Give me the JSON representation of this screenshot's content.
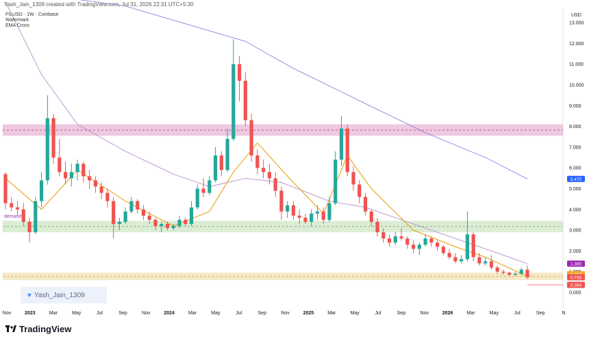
{
  "header": {
    "credit": "Yash_Jain_1309 created with TradingView.com, Jul 31, 2026 22:31 UTC+5:30"
  },
  "legend": {
    "symbol": "FILUSD · 1W · Coinbase",
    "watermark": "Watermark",
    "indicator": "EMA Cross"
  },
  "watermark": {
    "text": "Yash_Jain_1309",
    "icon": "heart-icon"
  },
  "zones": {
    "demand_label": "demand"
  },
  "footer": {
    "logo_text": "TradingView",
    "logo_icon": "tradingview-logo-icon"
  },
  "colors": {
    "up_candle": "#26a69a",
    "down_candle": "#ef5350",
    "ema_fast": "#e8a317",
    "ema_slow": "#8f83d9",
    "supply_zone": "#e8b7d6",
    "demand_zone": "#cfe6c7",
    "bottom_zone": "#f1e0b3"
  },
  "chart_data": {
    "type": "candlestick",
    "currency": "USD",
    "y_ticks": [
      "13.000",
      "12.000",
      "11.000",
      "10.000",
      "9.000",
      "8.000",
      "7.000",
      "6.000",
      "5.000",
      "4.000",
      "3.000",
      "2.000",
      "1.000",
      "0.000"
    ],
    "x_ticks": [
      "Nov",
      "2023",
      "Mar",
      "May",
      "Jul",
      "Sep",
      "Nov",
      "2024",
      "Mar",
      "May",
      "Jul",
      "Sep",
      "Nov",
      "2025",
      "Mar",
      "May",
      "Jul",
      "Sep",
      "Nov",
      "2026",
      "Mar",
      "May",
      "Jul",
      "Sep",
      "N"
    ],
    "ylim": [
      0,
      13.6
    ],
    "price_labels": [
      {
        "value": 5.47,
        "text": "5.470",
        "color": "#2962ff"
      },
      {
        "value": 1.385,
        "text": "1.385",
        "color": "#9c27b0"
      },
      {
        "value": 0.88,
        "text": "0.880",
        "color": "#f5a623"
      },
      {
        "value": 0.73,
        "text": "0.730",
        "color": "#ef5350"
      },
      {
        "value": 0.364,
        "text": "0.364",
        "color": "#ef5350"
      }
    ],
    "zones": [
      {
        "name": "supply",
        "low": 7.55,
        "high": 8.1,
        "mid": 7.82
      },
      {
        "name": "demand",
        "low": 2.9,
        "high": 3.45,
        "mid": 3.18
      },
      {
        "name": "bottom",
        "low": 0.6,
        "high": 0.95,
        "mid": 0.78
      }
    ],
    "candles": [
      [
        5.7,
        5.8,
        4.0,
        4.3
      ],
      [
        4.3,
        4.6,
        3.9,
        4.1
      ],
      [
        4.1,
        4.4,
        3.7,
        4.0
      ],
      [
        4.0,
        4.3,
        3.2,
        3.4
      ],
      [
        3.4,
        3.6,
        2.4,
        2.9
      ],
      [
        2.9,
        4.6,
        2.8,
        4.4
      ],
      [
        4.4,
        5.8,
        4.1,
        5.4
      ],
      [
        5.4,
        9.5,
        5.2,
        8.4
      ],
      [
        8.4,
        8.6,
        6.2,
        6.5
      ],
      [
        6.5,
        7.4,
        5.6,
        5.8
      ],
      [
        5.8,
        6.3,
        5.2,
        5.5
      ],
      [
        5.5,
        6.2,
        5.1,
        5.8
      ],
      [
        5.8,
        6.4,
        5.4,
        6.2
      ],
      [
        6.2,
        6.3,
        5.3,
        5.6
      ],
      [
        5.6,
        5.9,
        5.0,
        5.4
      ],
      [
        5.4,
        5.6,
        4.8,
        5.1
      ],
      [
        5.1,
        5.3,
        4.5,
        4.8
      ],
      [
        4.8,
        5.0,
        4.1,
        4.4
      ],
      [
        4.4,
        4.6,
        2.6,
        3.3
      ],
      [
        3.3,
        3.6,
        3.0,
        3.4
      ],
      [
        3.4,
        4.1,
        3.3,
        3.9
      ],
      [
        3.9,
        4.6,
        3.8,
        4.4
      ],
      [
        4.4,
        4.5,
        3.8,
        4.0
      ],
      [
        4.0,
        4.2,
        3.5,
        3.7
      ],
      [
        3.7,
        3.9,
        3.3,
        3.5
      ],
      [
        3.5,
        3.6,
        3.0,
        3.2
      ],
      [
        3.2,
        3.4,
        2.9,
        3.3
      ],
      [
        3.3,
        3.4,
        3.0,
        3.1
      ],
      [
        3.1,
        3.3,
        3.0,
        3.2
      ],
      [
        3.2,
        3.7,
        3.1,
        3.5
      ],
      [
        3.5,
        3.6,
        3.2,
        3.3
      ],
      [
        3.3,
        4.4,
        3.2,
        4.1
      ],
      [
        4.1,
        5.2,
        4.0,
        5.0
      ],
      [
        5.0,
        5.5,
        4.6,
        4.8
      ],
      [
        4.8,
        5.6,
        4.7,
        5.4
      ],
      [
        5.4,
        7.0,
        5.3,
        6.6
      ],
      [
        6.6,
        6.8,
        5.6,
        5.9
      ],
      [
        5.9,
        7.9,
        5.8,
        7.4
      ],
      [
        7.4,
        12.2,
        7.3,
        11.0
      ],
      [
        11.0,
        11.4,
        9.2,
        10.2
      ],
      [
        10.2,
        10.6,
        8.0,
        8.3
      ],
      [
        8.3,
        8.6,
        6.3,
        6.6
      ],
      [
        6.6,
        6.9,
        5.7,
        6.0
      ],
      [
        6.0,
        6.4,
        5.5,
        5.8
      ],
      [
        5.8,
        6.2,
        5.2,
        5.5
      ],
      [
        5.5,
        5.8,
        4.6,
        4.9
      ],
      [
        4.9,
        5.1,
        3.5,
        3.9
      ],
      [
        3.9,
        4.4,
        3.6,
        4.2
      ],
      [
        4.2,
        4.4,
        3.5,
        3.7
      ],
      [
        3.7,
        4.0,
        3.3,
        3.6
      ],
      [
        3.6,
        3.8,
        3.3,
        3.4
      ],
      [
        3.4,
        4.0,
        3.2,
        3.8
      ],
      [
        3.8,
        4.2,
        3.5,
        3.9
      ],
      [
        3.9,
        4.1,
        3.3,
        3.5
      ],
      [
        3.5,
        4.6,
        3.4,
        4.3
      ],
      [
        4.3,
        6.8,
        4.2,
        6.4
      ],
      [
        6.4,
        8.5,
        6.1,
        7.9
      ],
      [
        7.9,
        8.1,
        5.6,
        5.8
      ],
      [
        5.8,
        6.1,
        4.9,
        5.2
      ],
      [
        5.2,
        5.4,
        4.3,
        4.6
      ],
      [
        4.6,
        4.8,
        3.7,
        3.9
      ],
      [
        3.9,
        4.0,
        3.2,
        3.4
      ],
      [
        3.4,
        3.6,
        2.7,
        2.9
      ],
      [
        2.9,
        3.1,
        2.4,
        2.6
      ],
      [
        2.6,
        2.8,
        2.2,
        2.4
      ],
      [
        2.4,
        2.9,
        2.3,
        2.7
      ],
      [
        2.7,
        3.1,
        2.5,
        2.6
      ],
      [
        2.6,
        2.7,
        2.1,
        2.3
      ],
      [
        2.3,
        2.5,
        1.9,
        2.1
      ],
      [
        2.1,
        2.4,
        1.8,
        2.3
      ],
      [
        2.3,
        2.8,
        2.2,
        2.6
      ],
      [
        2.6,
        2.7,
        2.2,
        2.4
      ],
      [
        2.4,
        2.5,
        2.0,
        2.2
      ],
      [
        2.2,
        2.3,
        1.8,
        1.9
      ],
      [
        1.9,
        2.1,
        1.6,
        1.7
      ],
      [
        1.7,
        1.9,
        1.4,
        1.5
      ],
      [
        1.5,
        1.8,
        1.4,
        1.6
      ],
      [
        1.6,
        3.9,
        1.5,
        2.8
      ],
      [
        2.8,
        2.9,
        1.5,
        1.7
      ],
      [
        1.7,
        1.9,
        1.3,
        1.4
      ],
      [
        1.4,
        1.7,
        1.3,
        1.5
      ],
      [
        1.5,
        1.8,
        1.1,
        1.2
      ],
      [
        1.2,
        1.3,
        0.9,
        1.0
      ],
      [
        1.0,
        1.1,
        0.85,
        0.95
      ],
      [
        0.95,
        1.0,
        0.8,
        0.85
      ],
      [
        0.85,
        1.0,
        0.8,
        0.9
      ],
      [
        0.9,
        1.2,
        0.85,
        1.1
      ],
      [
        1.1,
        1.3,
        0.65,
        0.73
      ]
    ],
    "ema_fast": [
      [
        0,
        5.5
      ],
      [
        6,
        4.0
      ],
      [
        12,
        5.9
      ],
      [
        20,
        4.4
      ],
      [
        28,
        3.2
      ],
      [
        34,
        3.9
      ],
      [
        38,
        5.8
      ],
      [
        42,
        7.2
      ],
      [
        47,
        5.6
      ],
      [
        53,
        3.8
      ],
      [
        57,
        6.6
      ],
      [
        61,
        5.0
      ],
      [
        68,
        3.0
      ],
      [
        75,
        2.2
      ],
      [
        80,
        1.7
      ],
      [
        87,
        0.78
      ]
    ],
    "ema_slow": [
      [
        0,
        14.0
      ],
      [
        6,
        10.5
      ],
      [
        12,
        8.1
      ],
      [
        20,
        6.8
      ],
      [
        28,
        5.7
      ],
      [
        34,
        5.1
      ],
      [
        40,
        5.5
      ],
      [
        46,
        5.3
      ],
      [
        54,
        4.4
      ],
      [
        60,
        4.1
      ],
      [
        68,
        3.3
      ],
      [
        76,
        2.5
      ],
      [
        82,
        1.9
      ],
      [
        87,
        1.385
      ]
    ],
    "ema_long": [
      [
        0,
        14.6
      ],
      [
        20,
        13.8
      ],
      [
        40,
        12.1
      ],
      [
        48,
        10.8
      ],
      [
        60,
        9.1
      ],
      [
        70,
        7.7
      ],
      [
        80,
        6.5
      ],
      [
        87,
        5.47
      ]
    ]
  }
}
